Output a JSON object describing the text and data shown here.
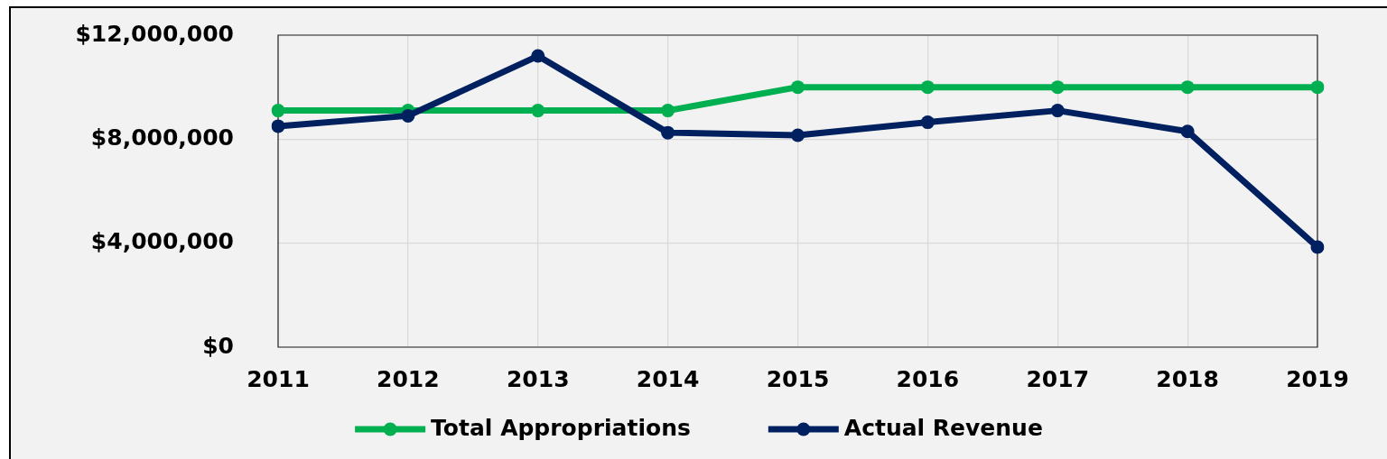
{
  "chart_data": {
    "type": "line",
    "categories": [
      "2011",
      "2012",
      "2013",
      "2014",
      "2015",
      "2016",
      "2017",
      "2018",
      "2019"
    ],
    "series": [
      {
        "name": "Total Appropriations",
        "color": "#00b050",
        "values": [
          9100000,
          9100000,
          9100000,
          9100000,
          10000000,
          10000000,
          10000000,
          10000000,
          10000000
        ]
      },
      {
        "name": "Actual Revenue",
        "color": "#002060",
        "values": [
          8500000,
          8900000,
          11200000,
          8250000,
          8150000,
          8650000,
          9100000,
          8300000,
          3850000
        ]
      }
    ],
    "ylim": [
      0,
      12000000
    ],
    "yticks": [
      {
        "value": 0,
        "label": "$0"
      },
      {
        "value": 4000000,
        "label": "$4,000,000"
      },
      {
        "value": 8000000,
        "label": "$8,000,000"
      },
      {
        "value": 12000000,
        "label": "$12,000,000"
      }
    ],
    "grid": true,
    "legend": "bottom",
    "marker": "circle",
    "line_style": "solid"
  }
}
